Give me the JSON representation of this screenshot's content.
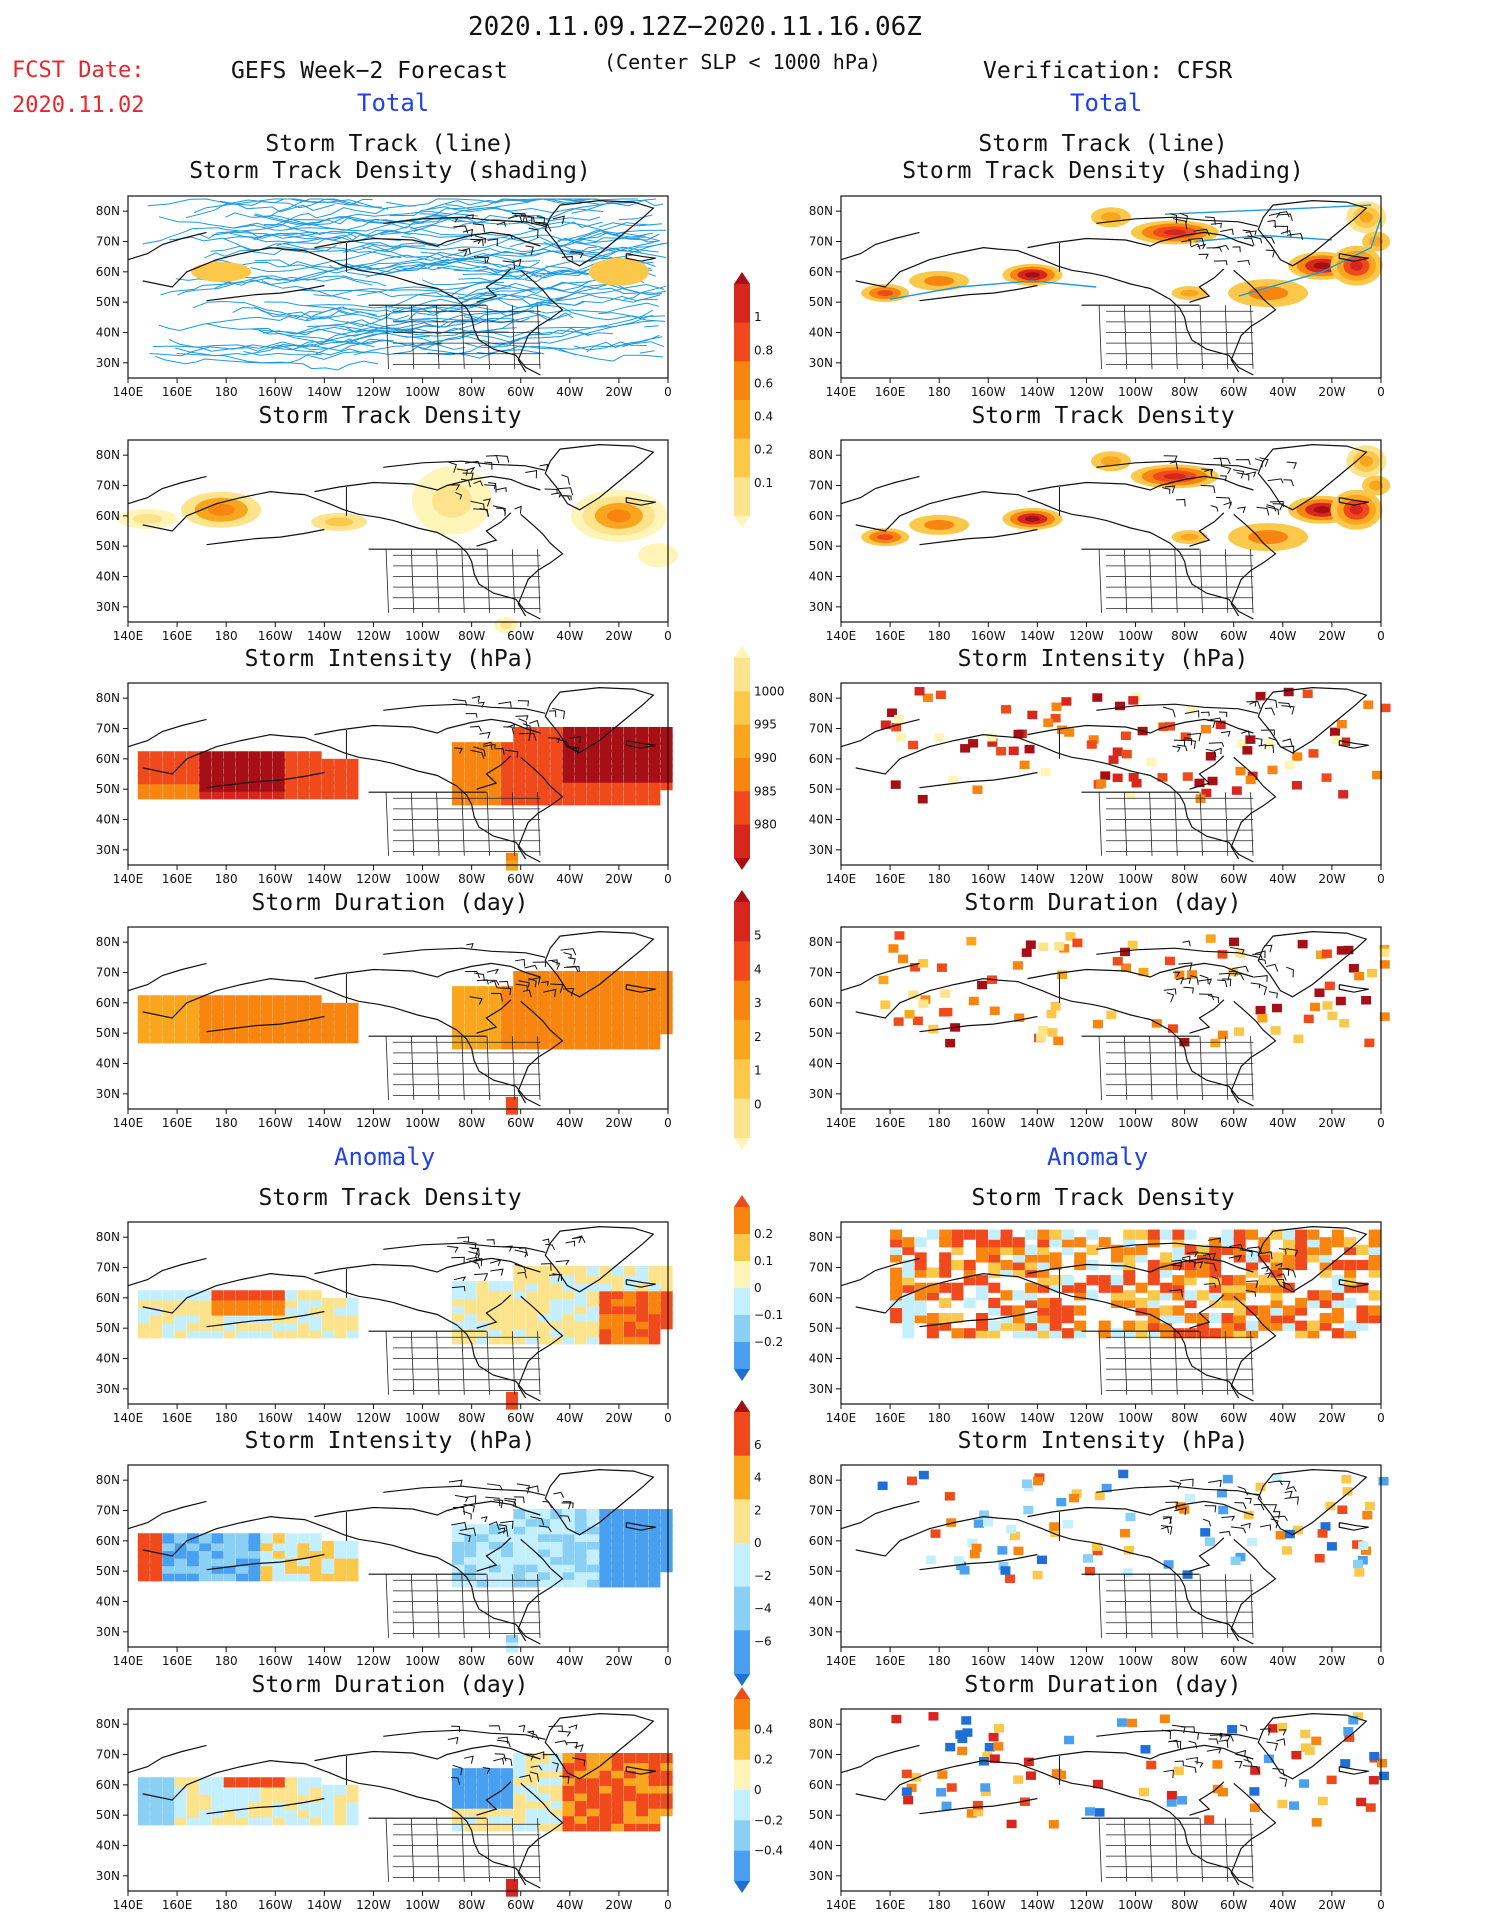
{
  "header": {
    "period": "2020.11.09.12Z−2020.11.16.06Z",
    "fcst_label": "FCST Date:",
    "fcst_date": "2020.11.02",
    "left_model": "GEFS Week−2 Forecast",
    "criterion": "(Center SLP < 1000 hPa)",
    "right_model": "Verification: CFSR"
  },
  "sections": {
    "total": "Total",
    "anomaly": "Anomaly"
  },
  "panel_titles": {
    "track_line": "Storm Track (line)",
    "track_shading": "Storm Track Density (shading)",
    "density": "Storm Track Density",
    "intensity": "Storm Intensity (hPa)",
    "duration": "Storm Duration (day)"
  },
  "axes": {
    "lon_labels": [
      "140E",
      "160E",
      "180",
      "160W",
      "140W",
      "120W",
      "100W",
      "80W",
      "60W",
      "40W",
      "20W",
      "0"
    ],
    "lat_labels": [
      "80N",
      "70N",
      "60N",
      "50N",
      "40N",
      "30N"
    ]
  },
  "colorbars": {
    "density_total": {
      "labels": [
        "1",
        "0.8",
        "0.6",
        "0.4",
        "0.2",
        "0.1"
      ],
      "colors": [
        "#a50f15",
        "#d7261e",
        "#f04a1c",
        "#f7850f",
        "#f9a61e",
        "#fbc84a",
        "#fde48c",
        "#fff5b8"
      ]
    },
    "intensity_total": {
      "labels": [
        "1000",
        "995",
        "990",
        "985",
        "980"
      ],
      "colors": [
        "#fff5b8",
        "#fde48c",
        "#fbc84a",
        "#f9a61e",
        "#f7850f",
        "#f04a1c",
        "#d7261e",
        "#a50f15"
      ]
    },
    "duration_total": {
      "labels": [
        "5",
        "4",
        "3",
        "2",
        "1",
        "0"
      ],
      "colors": [
        "#a50f15",
        "#d7261e",
        "#f04a1c",
        "#f7850f",
        "#f9a61e",
        "#fbc84a",
        "#fde48c",
        "#fff5b8"
      ]
    },
    "density_anom": {
      "labels": [
        "0.2",
        "0.1",
        "0",
        "−0.1",
        "−0.2"
      ],
      "colors": [
        "#f04a1c",
        "#f7850f",
        "#fbc84a",
        "#fff5b8",
        "#c4efff",
        "#8ad0f5",
        "#4aa0f0",
        "#1f6fd6"
      ]
    },
    "intensity_anom": {
      "labels": [
        "6",
        "4",
        "2",
        "0",
        "−2",
        "−4",
        "−6"
      ],
      "colors": [
        "#a50f15",
        "#f04a1c",
        "#f9a61e",
        "#fde48c",
        "#c4efff",
        "#8ad0f5",
        "#4aa0f0",
        "#1f6fd6"
      ]
    },
    "duration_anom": {
      "labels": [
        "0.4",
        "0.2",
        "0",
        "−0.2",
        "−0.4"
      ],
      "colors": [
        "#f04a1c",
        "#f7850f",
        "#fbc84a",
        "#fff5b8",
        "#c4efff",
        "#8ad0f5",
        "#4aa0f0",
        "#1f6fd6"
      ]
    }
  }
}
